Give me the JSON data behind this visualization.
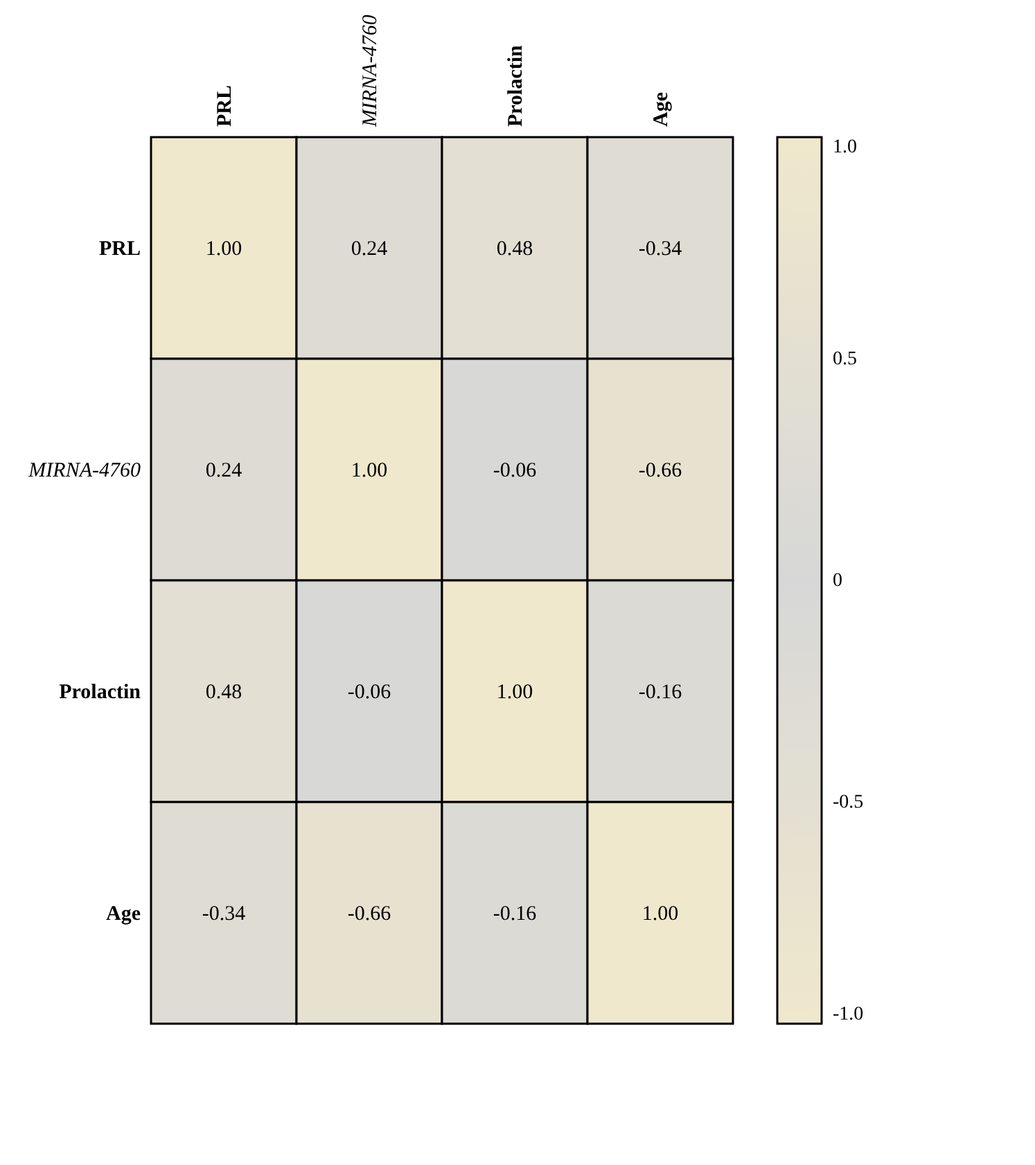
{
  "chart_data": {
    "type": "heatmap",
    "categories": [
      "PRL",
      "MIRNA-4760",
      "Prolactin",
      "Age"
    ],
    "y_categories": [
      "PRL",
      "MIRNA-4760",
      "Prolactin",
      "Age"
    ],
    "cells": [
      [
        1.0,
        0.24,
        0.48,
        -0.34
      ],
      [
        0.24,
        1.0,
        -0.06,
        -0.66
      ],
      [
        0.48,
        -0.06,
        1.0,
        -0.16
      ],
      [
        -0.34,
        -0.66,
        -0.16,
        1.0
      ]
    ],
    "cell_labels": [
      [
        "1.00",
        "0.24",
        "0.48",
        "-0.34"
      ],
      [
        "0.24",
        "1.00",
        "-0.06",
        "-0.66"
      ],
      [
        "0.48",
        "-0.06",
        "1.00",
        "-0.16"
      ],
      [
        "-0.34",
        "-0.66",
        "-0.16",
        "1.00"
      ]
    ],
    "clim": [
      -1,
      1
    ],
    "cticks": [
      {
        "value": 1,
        "label": "1.0"
      },
      0.5,
      0,
      -0.5,
      {
        "value": -1,
        "label": "-1.0"
      }
    ]
  }
}
